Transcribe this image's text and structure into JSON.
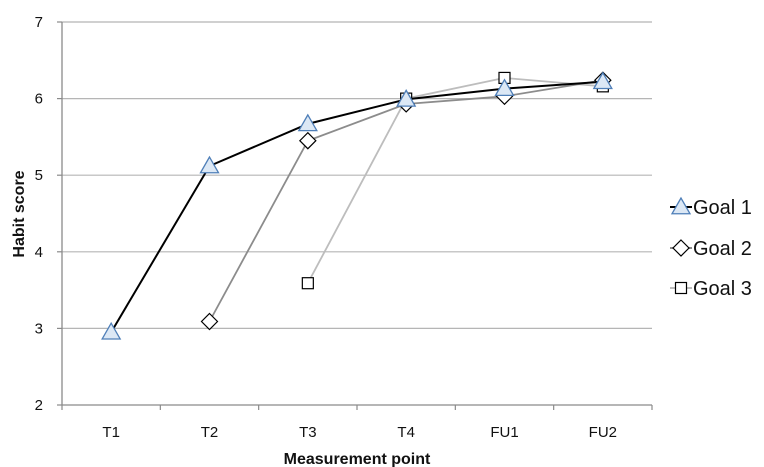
{
  "chart_data": {
    "type": "line",
    "categories": [
      "T1",
      "T2",
      "T3",
      "T4",
      "FU1",
      "FU2"
    ],
    "xlabel": "Measurement point",
    "ylabel": "Habit score",
    "ylim": [
      2,
      7
    ],
    "yticks": [
      2,
      3,
      4,
      5,
      6,
      7
    ],
    "grid": true,
    "legend_position": "right",
    "series": [
      {
        "name": "Goal 1",
        "marker": "triangle",
        "color": "#000000",
        "marker_fill": "#dce8f5",
        "marker_stroke": "#4f7fb8",
        "values": [
          2.95,
          5.12,
          5.67,
          5.99,
          6.13,
          6.22
        ]
      },
      {
        "name": "Goal 2",
        "marker": "diamond",
        "color": "#8c8c8c",
        "marker_fill": "#ffffff",
        "marker_stroke": "#000000",
        "values": [
          null,
          3.09,
          5.45,
          5.93,
          6.03,
          6.24
        ]
      },
      {
        "name": "Goal 3",
        "marker": "square",
        "color": "#bdbdbd",
        "marker_fill": "#ffffff",
        "marker_stroke": "#000000",
        "values": [
          null,
          null,
          3.59,
          6.0,
          6.27,
          6.16
        ]
      }
    ]
  }
}
